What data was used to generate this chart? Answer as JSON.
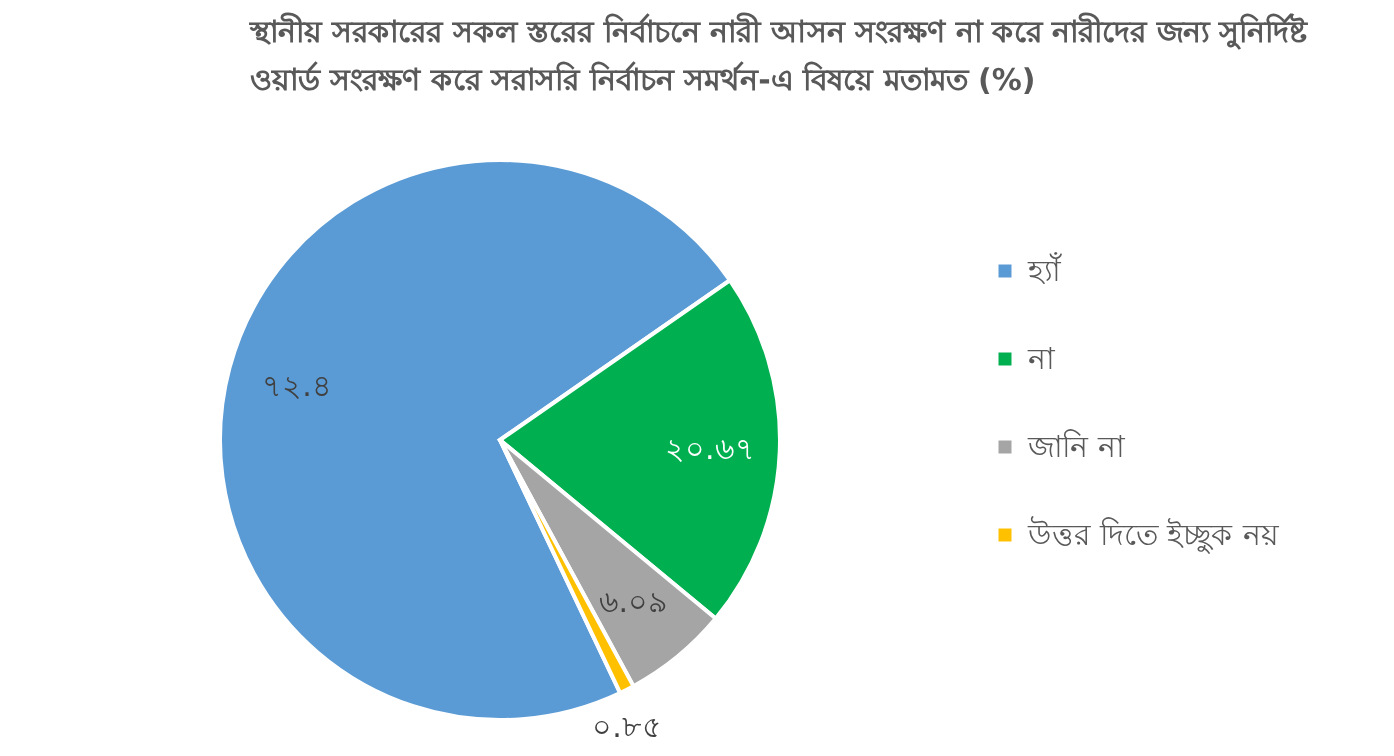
{
  "chart_data": {
    "type": "pie",
    "title": [
      "স্থানীয় সরকারের সকল স্তরের নির্বাচনে নারী আসন সংরক্ষণ না করে নারীদের জন্য সুনির্দিষ্ট",
      "ওয়ার্ড সংরক্ষণ করে সরাসরি নির্বাচন সমর্থন-এ বিষয়ে মতামত (%)"
    ],
    "categories": [
      "হ্যাঁ",
      "না",
      "জানি না",
      "উত্তর দিতে ইচ্ছুক নয়"
    ],
    "values": [
      72.4,
      20.67,
      6.09,
      0.85
    ],
    "value_labels": [
      "৭২.৪",
      "২০.৬৭",
      "৬.০৯",
      "০.৮৫"
    ],
    "colors": [
      "#5b9bd5",
      "#00b050",
      "#a5a5a5",
      "#ffc000"
    ],
    "legend": "right"
  }
}
